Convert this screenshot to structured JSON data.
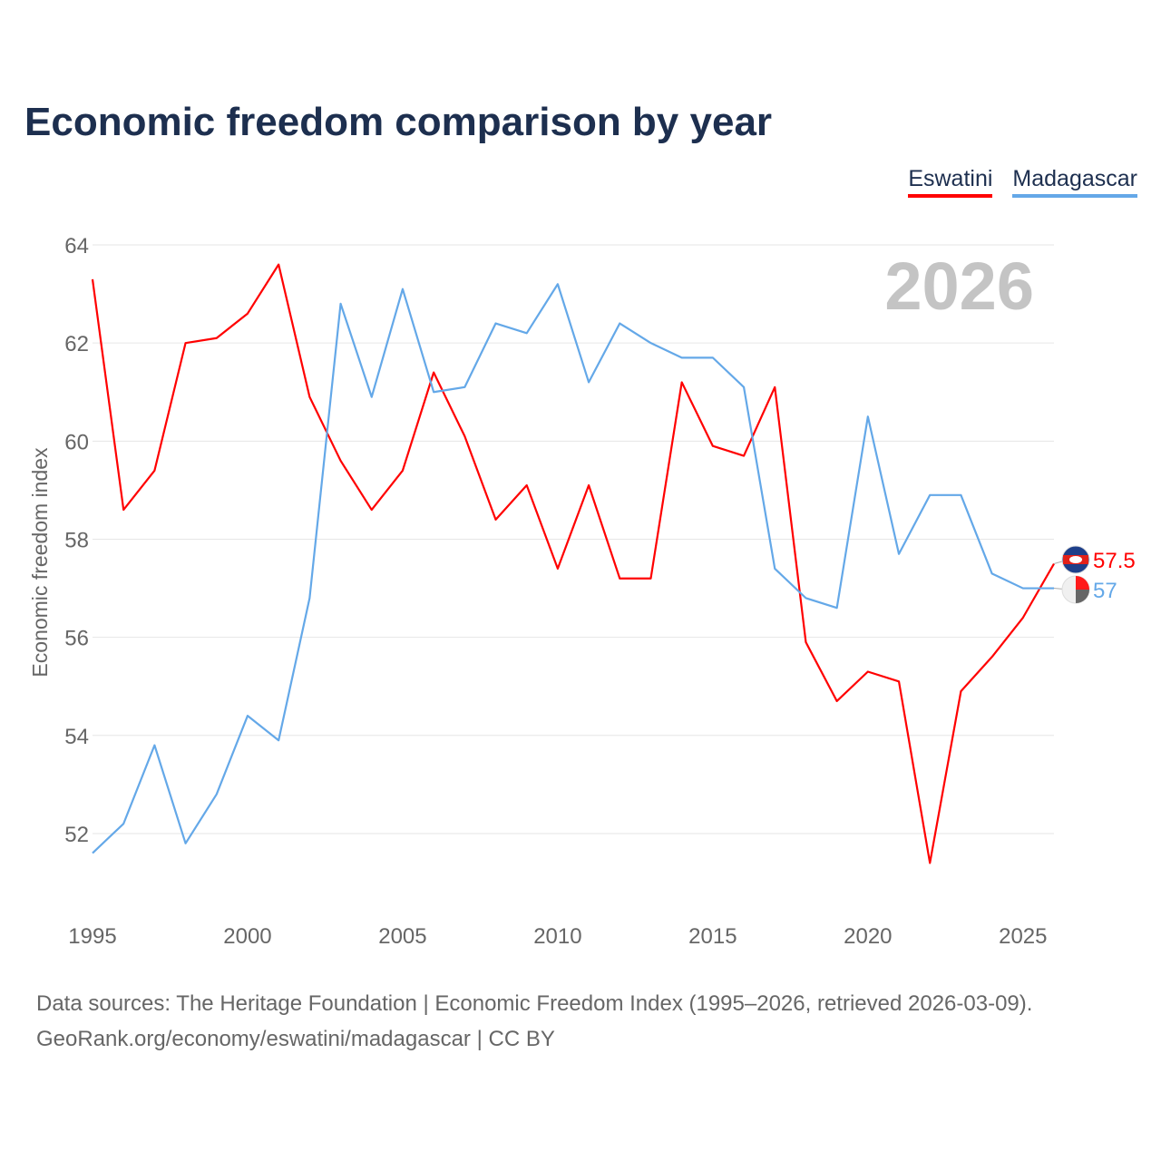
{
  "title": "Economic freedom comparison by year",
  "footer": {
    "line1": "Data sources: The Heritage Foundation | Economic Freedom Index (1995–2026, retrieved 2026-03-09).",
    "line2": "GeoRank.org/economy/eswatini/madagascar | CC BY"
  },
  "chart_data": {
    "type": "line",
    "title": "Economic freedom comparison by year",
    "xlabel": "",
    "ylabel": "Economic freedom index",
    "year_watermark": "2026",
    "x": [
      1995,
      1996,
      1997,
      1998,
      1999,
      2000,
      2001,
      2002,
      2003,
      2004,
      2005,
      2006,
      2007,
      2008,
      2009,
      2010,
      2011,
      2012,
      2013,
      2014,
      2015,
      2016,
      2017,
      2018,
      2019,
      2020,
      2021,
      2022,
      2023,
      2024,
      2025,
      2026
    ],
    "xlim": [
      1995,
      2026
    ],
    "ylim": [
      50.6,
      64.3
    ],
    "xticks": [
      "1995",
      "2000",
      "2005",
      "2010",
      "2015",
      "2020",
      "2025"
    ],
    "yticks": [
      "52",
      "54",
      "56",
      "58",
      "60",
      "62",
      "64"
    ],
    "grid": true,
    "legend_position": "top-right",
    "series": [
      {
        "name": "Eswatini",
        "color": "#ff0000",
        "end_label": "57.5",
        "values": [
          63.3,
          58.6,
          59.4,
          62.0,
          62.1,
          62.6,
          63.6,
          60.9,
          59.6,
          58.6,
          59.4,
          61.4,
          60.1,
          58.4,
          59.1,
          57.4,
          59.1,
          57.2,
          57.2,
          61.2,
          59.9,
          59.7,
          61.1,
          55.9,
          54.7,
          55.3,
          55.1,
          51.4,
          54.9,
          55.6,
          56.4,
          57.5
        ]
      },
      {
        "name": "Madagascar",
        "color": "#64a8e8",
        "end_label": "57",
        "values": [
          51.6,
          52.2,
          53.8,
          51.8,
          52.8,
          54.4,
          53.9,
          56.8,
          62.8,
          60.9,
          63.1,
          61.0,
          61.1,
          62.4,
          62.2,
          63.2,
          61.2,
          62.4,
          62.0,
          61.7,
          61.7,
          61.1,
          57.4,
          56.8,
          56.6,
          60.5,
          57.7,
          58.9,
          58.9,
          57.3,
          57.0,
          57.0
        ]
      }
    ]
  }
}
